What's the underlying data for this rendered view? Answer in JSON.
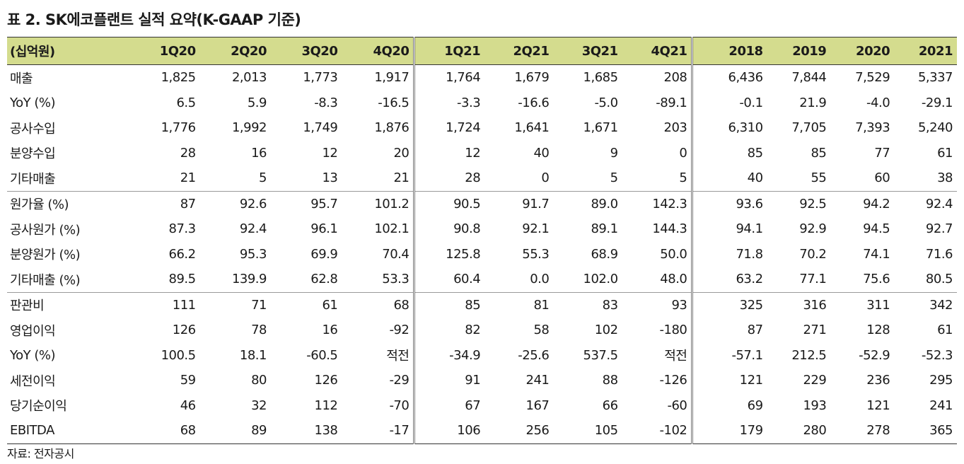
{
  "title": "표 2. SK에코플랜트 실적 요약(K-GAAP 기준)",
  "source": "자료: 전자공시",
  "header": [
    "(십억원)",
    "1Q20",
    "2Q20",
    "3Q20",
    "4Q20",
    "1Q21",
    "2Q21",
    "3Q21",
    "4Q21",
    "2018",
    "2019",
    "2020",
    "2021"
  ],
  "rows": [
    {
      "label": "매출",
      "values": [
        "1,825",
        "2,013",
        "1,773",
        "1,917",
        "1,764",
        "1,679",
        "1,685",
        "208",
        "6,436",
        "7,844",
        "7,529",
        "5,337"
      ]
    },
    {
      "label": "YoY (%)",
      "values": [
        "6.5",
        "5.9",
        "-8.3",
        "-16.5",
        "-3.3",
        "-16.6",
        "-5.0",
        "-89.1",
        "-0.1",
        "21.9",
        "-4.0",
        "-29.1"
      ]
    },
    {
      "label": "공사수입",
      "values": [
        "1,776",
        "1,992",
        "1,749",
        "1,876",
        "1,724",
        "1,641",
        "1,671",
        "203",
        "6,310",
        "7,705",
        "7,393",
        "5,240"
      ]
    },
    {
      "label": "분양수입",
      "values": [
        "28",
        "16",
        "12",
        "20",
        "12",
        "40",
        "9",
        "0",
        "85",
        "85",
        "77",
        "61"
      ]
    },
    {
      "label": "기타매출",
      "values": [
        "21",
        "5",
        "13",
        "21",
        "28",
        "0",
        "5",
        "5",
        "40",
        "55",
        "60",
        "38"
      ]
    },
    {
      "label": "원가율 (%)",
      "values": [
        "87",
        "92.6",
        "95.7",
        "101.2",
        "90.5",
        "91.7",
        "89.0",
        "142.3",
        "93.6",
        "92.5",
        "94.2",
        "92.4"
      ]
    },
    {
      "label": "공사원가 (%)",
      "values": [
        "87.3",
        "92.4",
        "96.1",
        "102.1",
        "90.8",
        "92.1",
        "89.1",
        "144.3",
        "94.1",
        "92.9",
        "94.5",
        "92.7"
      ]
    },
    {
      "label": "분양원가 (%)",
      "values": [
        "66.2",
        "95.3",
        "69.9",
        "70.4",
        "125.8",
        "55.3",
        "68.9",
        "50.0",
        "71.8",
        "70.2",
        "74.1",
        "71.6"
      ]
    },
    {
      "label": "기타매출 (%)",
      "values": [
        "89.5",
        "139.9",
        "62.8",
        "53.3",
        "60.4",
        "0.0",
        "102.0",
        "48.0",
        "63.2",
        "77.1",
        "75.6",
        "80.5"
      ]
    },
    {
      "label": "판관비",
      "values": [
        "111",
        "71",
        "61",
        "68",
        "85",
        "81",
        "83",
        "93",
        "325",
        "316",
        "311",
        "342"
      ]
    },
    {
      "label": "영업이익",
      "values": [
        "126",
        "78",
        "16",
        "-92",
        "82",
        "58",
        "102",
        "-180",
        "87",
        "271",
        "128",
        "61"
      ]
    },
    {
      "label": "YoY (%)",
      "values": [
        "100.5",
        "18.1",
        "-60.5",
        "적전",
        "-34.9",
        "-25.6",
        "537.5",
        "적전",
        "-57.1",
        "212.5",
        "-52.9",
        "-52.3"
      ]
    },
    {
      "label": "세전이익",
      "values": [
        "59",
        "80",
        "126",
        "-29",
        "91",
        "241",
        "88",
        "-126",
        "121",
        "229",
        "236",
        "295"
      ]
    },
    {
      "label": "당기순이익",
      "values": [
        "46",
        "32",
        "112",
        "-70",
        "67",
        "167",
        "66",
        "-60",
        "69",
        "193",
        "121",
        "241"
      ]
    },
    {
      "label": "EBITDA",
      "values": [
        "68",
        "89",
        "138",
        "-17",
        "106",
        "256",
        "105",
        "-102",
        "179",
        "280",
        "278",
        "365"
      ]
    }
  ]
}
